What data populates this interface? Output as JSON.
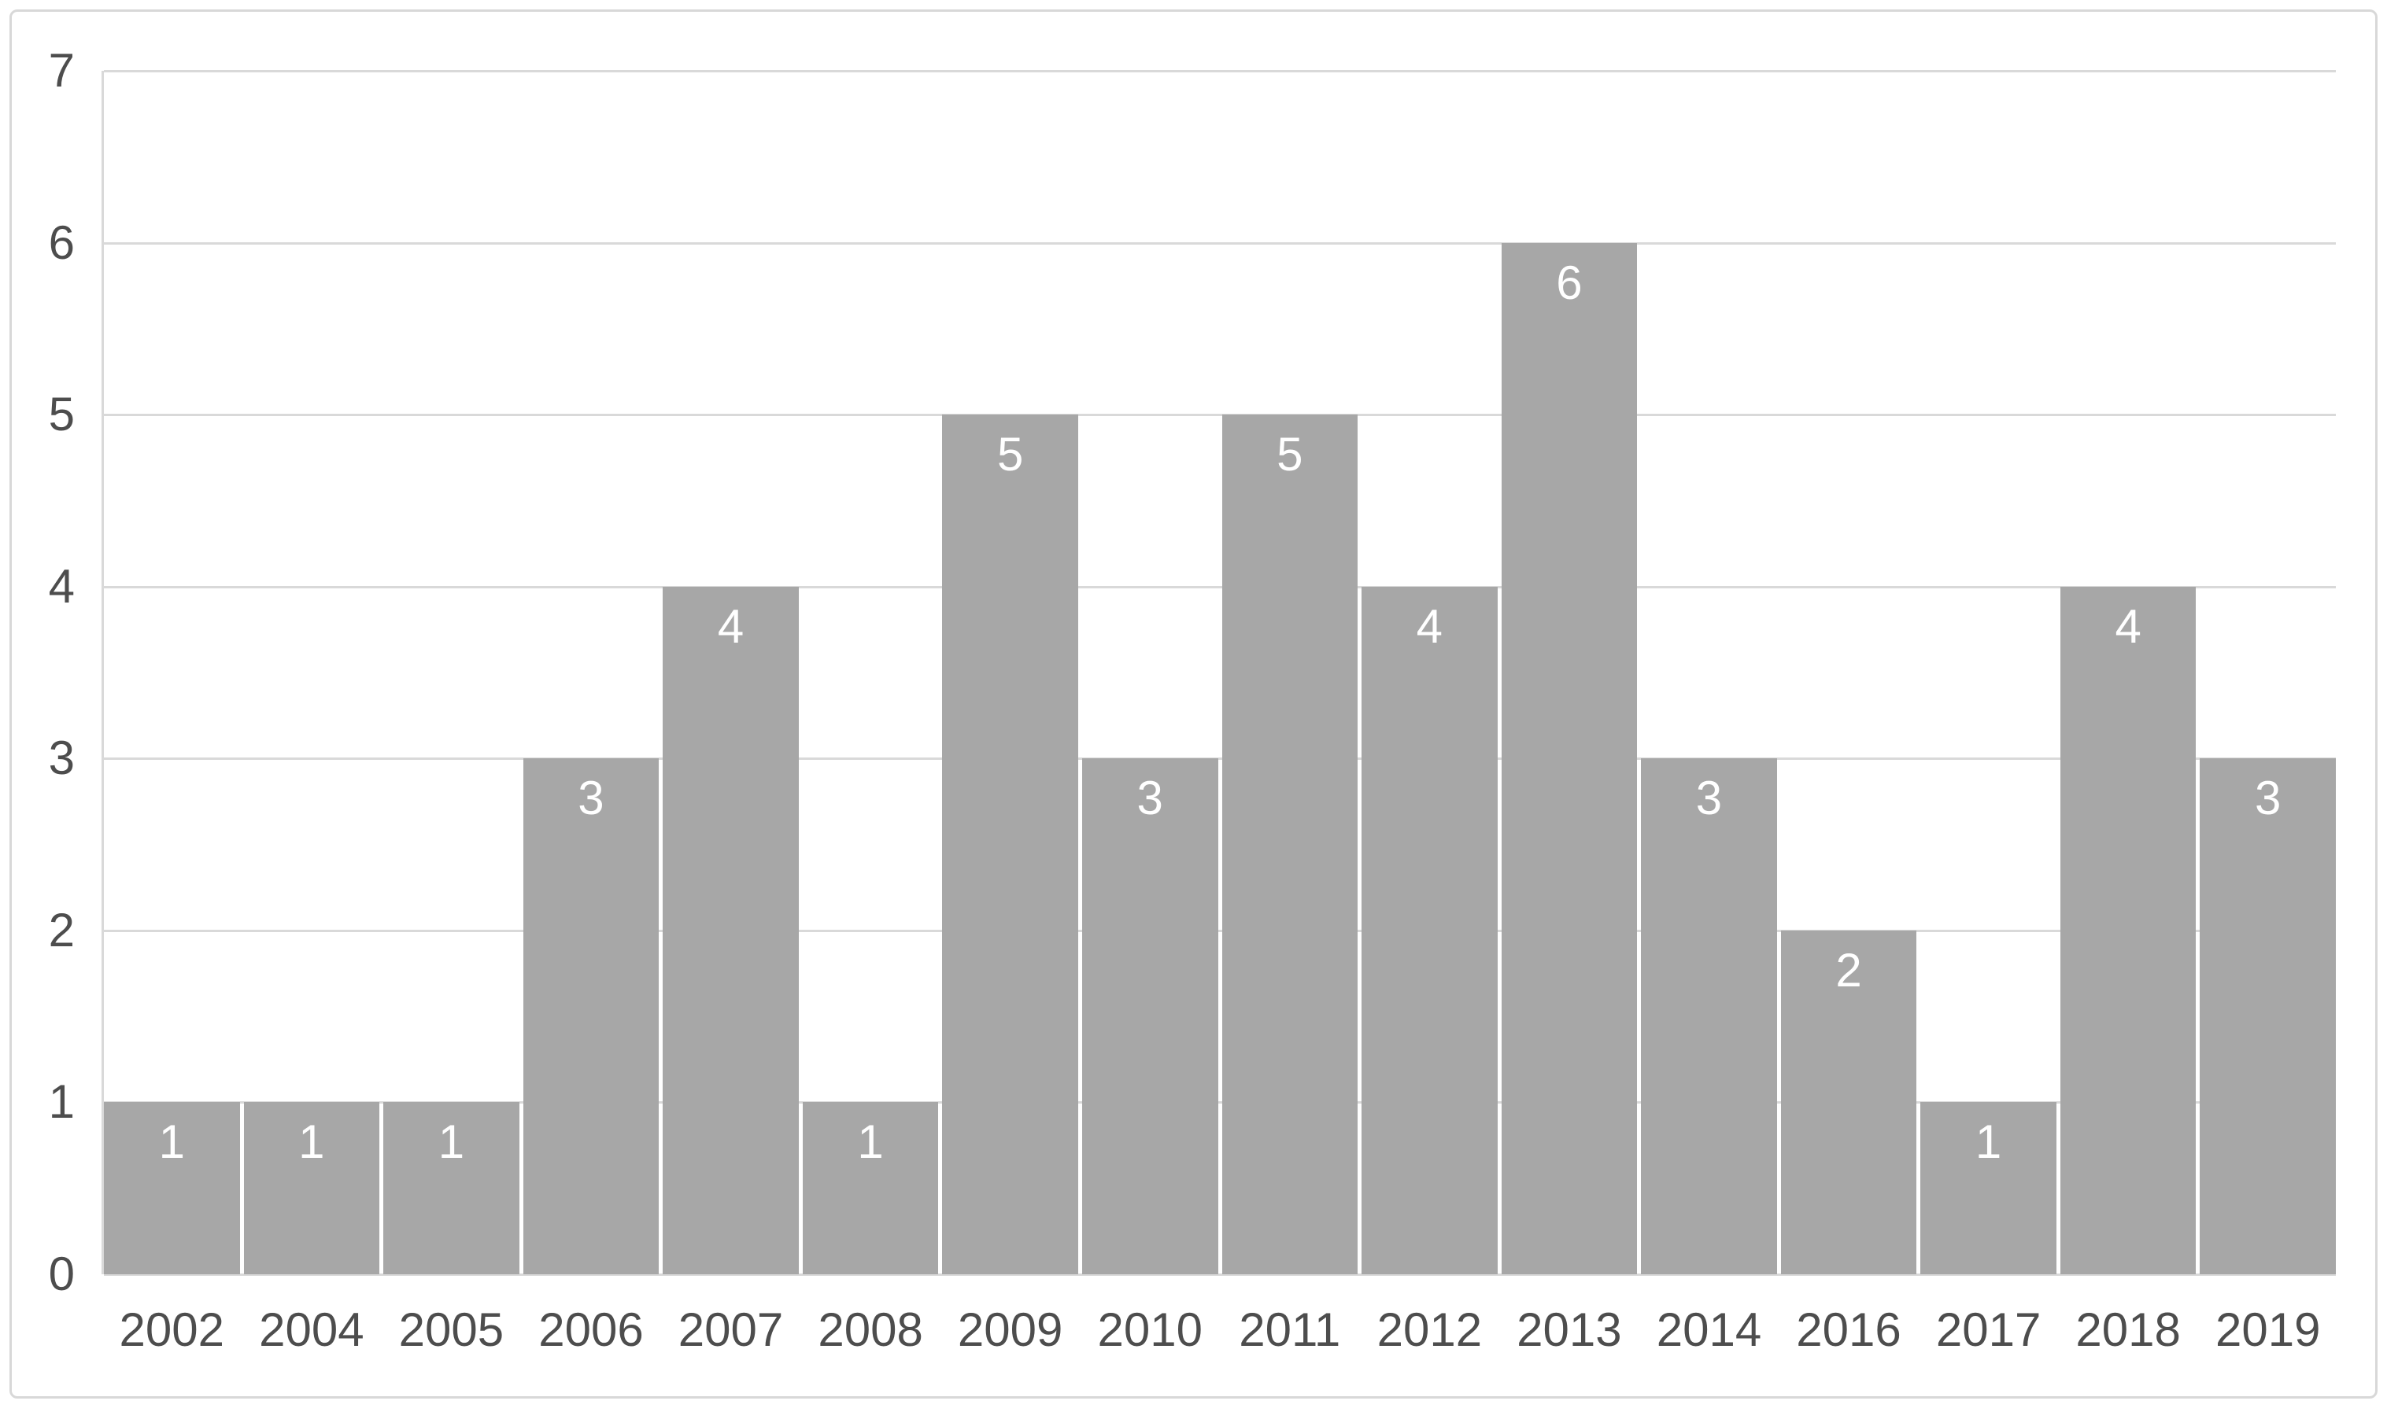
{
  "chart_data": {
    "type": "bar",
    "categories": [
      "2002",
      "2004",
      "2005",
      "2006",
      "2007",
      "2008",
      "2009",
      "2010",
      "2011",
      "2012",
      "2013",
      "2014",
      "2016",
      "2017",
      "2018",
      "2019"
    ],
    "values": [
      1,
      1,
      1,
      3,
      4,
      1,
      5,
      3,
      5,
      4,
      6,
      3,
      2,
      1,
      4,
      3
    ],
    "title": "",
    "xlabel": "",
    "ylabel": "",
    "ylim": [
      0,
      7
    ],
    "yticks": [
      0,
      1,
      2,
      3,
      4,
      5,
      6,
      7
    ],
    "grid": true,
    "legend_position": "none",
    "data_label_position": "inside-end",
    "colors": {
      "bar_fill": "#a7a7a7",
      "data_label": "#ffffff",
      "axis_text": "#4d4d4d",
      "gridline": "#d9d9d9",
      "chart_border": "#d8d8d8",
      "background": "#ffffff"
    }
  }
}
